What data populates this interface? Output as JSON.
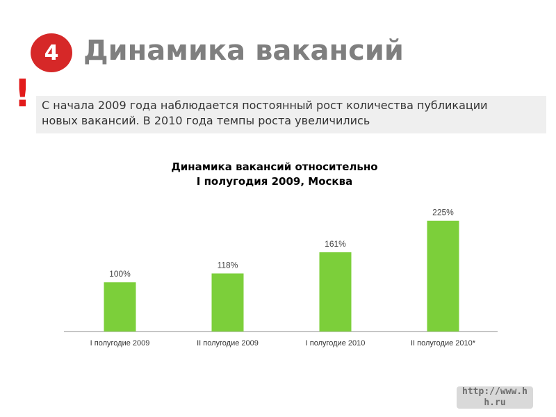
{
  "header": {
    "number": "4",
    "title": "Динамика вакансий"
  },
  "note": {
    "mark": "!",
    "line1": "С начала 2009 года наблюдается постоянный рост количества публикации",
    "line2": "новых вакансий. В 2010 года темпы роста увеличились"
  },
  "chart_data": {
    "type": "bar",
    "title": [
      "Динамика вакансий относительно",
      "I полугодия 2009, Москва"
    ],
    "categories": [
      "I полугодие 2009",
      "II полугодие 2009",
      "I полугодие 2010",
      "II полугодие 2010*"
    ],
    "values": [
      100,
      118,
      161,
      225
    ],
    "data_labels": [
      "100%",
      "118%",
      "161%",
      "225%"
    ],
    "ylim": [
      0,
      250
    ],
    "grid": false,
    "legend": "none",
    "bar_color": "#7ccf3a"
  },
  "footer": {
    "link_line1": "http://www.h",
    "link_line2": "h.ru"
  }
}
